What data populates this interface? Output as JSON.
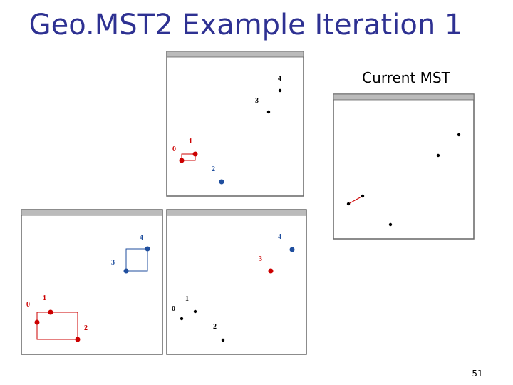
{
  "title": "Geo.MST2 Example Iteration 1",
  "current_mst_caption": "Current MST",
  "page_number": "51",
  "windows": [
    {
      "labels": [
        "4",
        "3",
        "1",
        "0",
        "2"
      ]
    },
    {
      "labels": [
        "4",
        "3",
        "1",
        "0",
        "2"
      ]
    },
    {
      "labels": [
        "4",
        "3",
        "1",
        "0",
        "2"
      ]
    }
  ]
}
